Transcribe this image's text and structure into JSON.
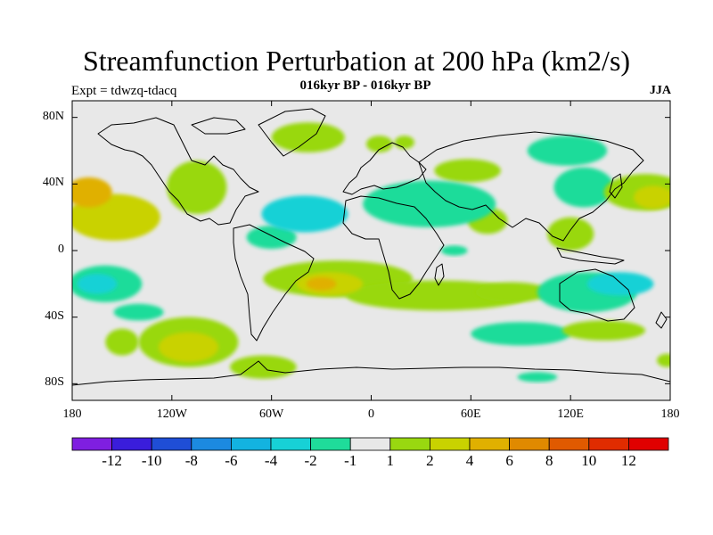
{
  "title": "Streamfunction Perturbation at 200 hPa (km2/s)",
  "subtitle": "016kyr BP - 016kyr BP",
  "experiment": "Expt = tdwzq-tdacq",
  "season": "JJA",
  "map_data": {
    "projection": "cylindrical-equidistant",
    "lon_range": [
      -180,
      180
    ],
    "lat_range": [
      -90,
      90
    ],
    "x_ticks": [
      {
        "lon": -180,
        "label": "180"
      },
      {
        "lon": -120,
        "label": "120W"
      },
      {
        "lon": -60,
        "label": "60W"
      },
      {
        "lon": 0,
        "label": "0"
      },
      {
        "lon": 60,
        "label": "60E"
      },
      {
        "lon": 120,
        "label": "120E"
      },
      {
        "lon": 180,
        "label": "180"
      }
    ],
    "y_ticks": [
      {
        "lat": 80,
        "label": "80N"
      },
      {
        "lat": 40,
        "label": "40N"
      },
      {
        "lat": 0,
        "label": "0"
      },
      {
        "lat": -40,
        "label": "40S"
      },
      {
        "lat": -80,
        "label": "80S"
      }
    ],
    "features": [
      {
        "lon": -155,
        "lat": 20,
        "rx": 28,
        "ry": 14,
        "v": 4.5
      },
      {
        "lon": -170,
        "lat": 35,
        "rx": 14,
        "ry": 9,
        "v": 5.5
      },
      {
        "lon": -105,
        "lat": 38,
        "rx": 18,
        "ry": 16,
        "v": 2.5
      },
      {
        "lon": -38,
        "lat": 68,
        "rx": 22,
        "ry": 9,
        "v": 2.5
      },
      {
        "lon": 5,
        "lat": 64,
        "rx": 8,
        "ry": 5,
        "v": 2.5
      },
      {
        "lon": 20,
        "lat": 65,
        "rx": 6,
        "ry": 4,
        "v": 2.5
      },
      {
        "lon": 58,
        "lat": 48,
        "rx": 20,
        "ry": 7,
        "v": 2.5
      },
      {
        "lon": 118,
        "lat": 60,
        "rx": 24,
        "ry": 9,
        "v": -2.5
      },
      {
        "lon": 70,
        "lat": 18,
        "rx": 12,
        "ry": 8,
        "v": 2.5
      },
      {
        "lon": 128,
        "lat": 38,
        "rx": 18,
        "ry": 12,
        "v": -2.5
      },
      {
        "lon": 165,
        "lat": 35,
        "rx": 25,
        "ry": 11,
        "v": 2.5
      },
      {
        "lon": 170,
        "lat": 32,
        "rx": 12,
        "ry": 7,
        "v": 4.5
      },
      {
        "lon": 120,
        "lat": 10,
        "rx": 14,
        "ry": 10,
        "v": 2.5
      },
      {
        "lon": 35,
        "lat": 28,
        "rx": 40,
        "ry": 14,
        "v": -2.5
      },
      {
        "lon": -40,
        "lat": 22,
        "rx": 26,
        "ry": 11,
        "v": -4.5
      },
      {
        "lon": -60,
        "lat": 8,
        "rx": 15,
        "ry": 7,
        "v": -2.5
      },
      {
        "lon": 50,
        "lat": 0,
        "rx": 8,
        "ry": 3,
        "v": -2.5
      },
      {
        "lon": -20,
        "lat": -17,
        "rx": 45,
        "ry": 11,
        "v": 2.5
      },
      {
        "lon": -25,
        "lat": -20,
        "rx": 20,
        "ry": 7,
        "v": 4.5
      },
      {
        "lon": -30,
        "lat": -20,
        "rx": 9,
        "ry": 4,
        "v": 5.5
      },
      {
        "lon": 40,
        "lat": -27,
        "rx": 55,
        "ry": 9,
        "v": 2.5
      },
      {
        "lon": 85,
        "lat": -25,
        "rx": 22,
        "ry": 6,
        "v": 2.5
      },
      {
        "lon": -160,
        "lat": -20,
        "rx": 22,
        "ry": 11,
        "v": -2.5
      },
      {
        "lon": -165,
        "lat": -20,
        "rx": 12,
        "ry": 6,
        "v": -4.5
      },
      {
        "lon": -140,
        "lat": -37,
        "rx": 15,
        "ry": 5,
        "v": -2.5
      },
      {
        "lon": 130,
        "lat": -25,
        "rx": 30,
        "ry": 12,
        "v": -2.5
      },
      {
        "lon": 150,
        "lat": -20,
        "rx": 20,
        "ry": 7,
        "v": -4.5
      },
      {
        "lon": 90,
        "lat": -50,
        "rx": 30,
        "ry": 7,
        "v": -2.5
      },
      {
        "lon": 140,
        "lat": -48,
        "rx": 25,
        "ry": 6,
        "v": 2.5
      },
      {
        "lon": -110,
        "lat": -55,
        "rx": 30,
        "ry": 15,
        "v": 2.5
      },
      {
        "lon": -110,
        "lat": -58,
        "rx": 18,
        "ry": 9,
        "v": 4.5
      },
      {
        "lon": -150,
        "lat": -55,
        "rx": 10,
        "ry": 8,
        "v": 2.5
      },
      {
        "lon": -65,
        "lat": -70,
        "rx": 20,
        "ry": 7,
        "v": 2.5
      },
      {
        "lon": 100,
        "lat": -76,
        "rx": 12,
        "ry": 3,
        "v": -2.5
      },
      {
        "lon": 178,
        "lat": -66,
        "rx": 6,
        "ry": 4,
        "v": 2.5
      }
    ]
  },
  "colorbar": {
    "colors": [
      "#7f1fe0",
      "#3a1ddb",
      "#1f4ed6",
      "#1c8ae0",
      "#13b3e0",
      "#17d1d6",
      "#1fdc9a",
      "#e8e8e8",
      "#99d810",
      "#c9d200",
      "#e0b000",
      "#e08a00",
      "#e05a00",
      "#e02c00",
      "#e00000"
    ],
    "labels": [
      "-12",
      "-10",
      "-8",
      "-6",
      "-4",
      "-2",
      "-1",
      "1",
      "2",
      "4",
      "6",
      "8",
      "10",
      "12"
    ]
  }
}
